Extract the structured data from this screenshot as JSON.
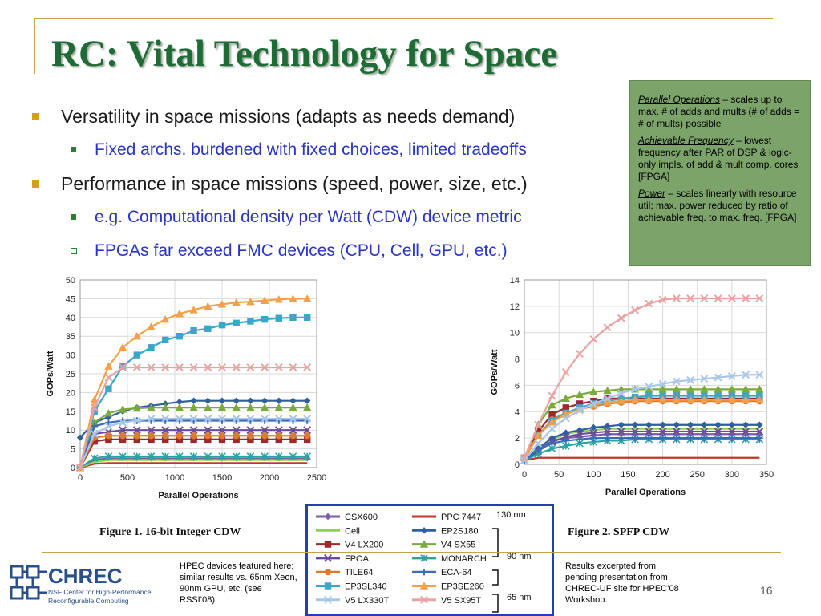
{
  "slide": {
    "title": "RC: Vital Technology for Space",
    "page_number": "16"
  },
  "bullets": [
    {
      "level": 1,
      "marker": "square",
      "text": "Versatility in space missions (adapts as needs demand)"
    },
    {
      "level": 2,
      "marker": "square",
      "text": "Fixed archs. burdened with fixed choices, limited tradeoffs"
    },
    {
      "level": 1,
      "marker": "square",
      "text": "Performance in space missions (speed, power, size, etc.)"
    },
    {
      "level": 2,
      "marker": "square",
      "text": "e.g. Computational density per Watt (CDW) device metric"
    },
    {
      "level": 2,
      "marker": "hollow-square",
      "text": "FPGAs far exceed FMC devices (CPU, Cell, GPU, etc.)"
    }
  ],
  "notes": {
    "parallel_term": "Parallel Operations",
    "parallel_text": " – scales up to max. # of adds and mults (# of adds = # of mults) possible",
    "freq_term": "Achievable Frequency",
    "freq_text": " – lowest frequency after PAR of DSP & logic-only impls. of add & mult comp. cores [FPGA]",
    "power_term": "Power",
    "power_text": " – scales linearly with resource util; max. power reduced by ratio of achievable freq. to max. freq. [FPGA]"
  },
  "footer": {
    "left_note": "HPEC devices featured here; similar results vs. 65nm Xeon, 90nm GPU, etc. (see RSSI’08).",
    "right_note": "Results excerpted from pending presentation from CHREC-UF site for HPEC’08 Workshop.",
    "logo_text": "CHREC",
    "logo_sub1": "NSF Center for High-Performance",
    "logo_sub2": "Reconfigurable Computing"
  },
  "colors": {
    "title": "#1e6b35",
    "accent_gold": "#c8a24a",
    "note_bg": "#7ba36a",
    "legend_border": "#2b3bb0"
  },
  "legend": {
    "series": [
      {
        "name": "CSX600",
        "color": "#7b5ea7",
        "marker": "diamond"
      },
      {
        "name": "PPC 7447",
        "color": "#c0392b",
        "marker": "none"
      },
      {
        "name": "Cell",
        "color": "#8fd14f",
        "marker": "none"
      },
      {
        "name": "EP2S180",
        "color": "#2e5fa3",
        "marker": "diamond"
      },
      {
        "name": "V4 LX200",
        "color": "#a0282c",
        "marker": "square"
      },
      {
        "name": "V4 SX55",
        "color": "#7aab3a",
        "marker": "triangle"
      },
      {
        "name": "FPOA",
        "color": "#6a4c9c",
        "marker": "x"
      },
      {
        "name": "MONARCH",
        "color": "#2aa3a3",
        "marker": "asterisk"
      },
      {
        "name": "TILE64",
        "color": "#e07a2e",
        "marker": "circle"
      },
      {
        "name": "ECA-64",
        "color": "#3a6bb8",
        "marker": "plus"
      },
      {
        "name": "EP3SL340",
        "color": "#3aa7c9",
        "marker": "square"
      },
      {
        "name": "EP3SE260",
        "color": "#f4a04a",
        "marker": "triangle"
      },
      {
        "name": "V5 LX330T",
        "color": "#a9c7e8",
        "marker": "x"
      },
      {
        "name": "V5 SX95T",
        "color": "#e8a3a3",
        "marker": "x"
      }
    ],
    "groups": [
      "130 nm",
      "90 nm",
      "65 nm"
    ]
  },
  "chart_data": [
    {
      "type": "line",
      "caption": "Figure 1. 16-bit Integer CDW",
      "xlabel": "Parallel Operations",
      "ylabel": "GOPs/Watt",
      "xlim": [
        0,
        2500
      ],
      "ylim": [
        0,
        50
      ],
      "xticks": [
        0,
        500,
        1000,
        1500,
        2000,
        2500
      ],
      "yticks": [
        0,
        5,
        10,
        15,
        20,
        25,
        30,
        35,
        40,
        45,
        50
      ],
      "grid": true,
      "x": [
        0,
        150,
        300,
        450,
        600,
        750,
        900,
        1050,
        1200,
        1350,
        1500,
        1650,
        1800,
        1950,
        2100,
        2250,
        2400
      ],
      "series": [
        {
          "name": "CSX600",
          "values": [
            0,
            2.0,
            2.5,
            2.5,
            2.5,
            2.5,
            2.5,
            2.5,
            2.5,
            2.5,
            2.5,
            2.5,
            2.5,
            2.5,
            2.5,
            2.5,
            2.5
          ]
        },
        {
          "name": "PPC 7447",
          "values": [
            0,
            1.0,
            1.2,
            1.2,
            1.2,
            1.2,
            1.2,
            1.2,
            1.2,
            1.2,
            1.2,
            1.2,
            1.2,
            1.2,
            1.2,
            1.2,
            1.2
          ]
        },
        {
          "name": "Cell",
          "values": [
            0,
            1.5,
            2.0,
            2.0,
            2.0,
            2.0,
            2.0,
            2.0,
            2.0,
            2.0,
            2.0,
            2.0,
            2.0,
            2.0,
            2.0,
            2.0,
            2.0
          ]
        },
        {
          "name": "EP2S180",
          "values": [
            8,
            12,
            13.5,
            15,
            16,
            16.5,
            17,
            17.5,
            17.8,
            17.8,
            17.8,
            17.8,
            17.8,
            17.8,
            17.8,
            17.8,
            17.8
          ]
        },
        {
          "name": "V4 LX200",
          "values": [
            0,
            7.0,
            7.5,
            7.5,
            7.5,
            7.5,
            7.5,
            7.5,
            7.5,
            7.5,
            7.5,
            7.5,
            7.5,
            7.5,
            7.5,
            7.5,
            7.5
          ]
        },
        {
          "name": "V4 SX55",
          "values": [
            0,
            12,
            14.5,
            15.5,
            15.8,
            16,
            16,
            16,
            16,
            16,
            16,
            16,
            16,
            16,
            16,
            16,
            16
          ]
        },
        {
          "name": "FPOA",
          "values": [
            0,
            9.0,
            9.5,
            10,
            10,
            10,
            10,
            10,
            10,
            10,
            10,
            10,
            10,
            10,
            10,
            10,
            10
          ]
        },
        {
          "name": "MONARCH",
          "values": [
            0,
            2.5,
            3.0,
            3.0,
            3.0,
            3.0,
            3.0,
            3.0,
            3.0,
            3.0,
            3.0,
            3.0,
            3.0,
            3.0,
            3.0,
            3.0,
            3.0
          ]
        },
        {
          "name": "TILE64",
          "values": [
            0,
            8.0,
            8.5,
            8.5,
            8.5,
            8.5,
            8.5,
            8.5,
            8.5,
            8.5,
            8.5,
            8.5,
            8.5,
            8.5,
            8.5,
            8.5,
            8.5
          ]
        },
        {
          "name": "ECA-64",
          "values": [
            0,
            11,
            12,
            12.5,
            12.5,
            12.5,
            12.5,
            12.5,
            12.5,
            12.5,
            12.5,
            12.5,
            12.5,
            12.5,
            12.5,
            12.5,
            12.5
          ]
        },
        {
          "name": "EP3SL340",
          "values": [
            0,
            15,
            21,
            27,
            30,
            32,
            34,
            35,
            36.5,
            37,
            38,
            38.5,
            39,
            39.5,
            39.8,
            40,
            40
          ]
        },
        {
          "name": "EP3SE260",
          "values": [
            0,
            18,
            27,
            32,
            35,
            37.5,
            39.5,
            41,
            42,
            43,
            43.5,
            44,
            44.2,
            44.5,
            44.8,
            45,
            45
          ]
        },
        {
          "name": "V5 LX330T",
          "values": [
            0,
            9,
            11,
            12,
            12.5,
            13,
            13,
            13,
            13,
            13,
            13,
            13,
            13,
            13,
            13,
            13,
            13
          ]
        },
        {
          "name": "V5 SX95T",
          "values": [
            0,
            16,
            24,
            26.7,
            26.7,
            26.7,
            26.7,
            26.7,
            26.7,
            26.7,
            26.7,
            26.7,
            26.7,
            26.7,
            26.7,
            26.7,
            26.7
          ]
        }
      ]
    },
    {
      "type": "line",
      "caption": "Figure 2. SPFP CDW",
      "xlabel": "Parallel Operations",
      "ylabel": "GOPs/Watt",
      "xlim": [
        0,
        350
      ],
      "ylim": [
        0,
        14
      ],
      "xticks": [
        0,
        50,
        100,
        150,
        200,
        250,
        300,
        350
      ],
      "yticks": [
        0,
        2,
        4,
        6,
        8,
        10,
        12,
        14
      ],
      "grid": true,
      "x": [
        0,
        20,
        40,
        60,
        80,
        100,
        120,
        140,
        160,
        180,
        200,
        220,
        240,
        260,
        280,
        300,
        320,
        340
      ],
      "series": [
        {
          "name": "CSX600",
          "values": [
            0.3,
            1.2,
            1.8,
            2.0,
            2.1,
            2.2,
            2.3,
            2.3,
            2.3,
            2.3,
            2.3,
            2.3,
            2.3,
            2.3,
            2.3,
            2.3,
            2.3,
            2.3
          ]
        },
        {
          "name": "PPC 7447",
          "values": [
            0.3,
            0.5,
            0.5,
            0.5,
            0.5,
            0.5,
            0.5,
            0.5,
            0.5,
            0.5,
            0.5,
            0.5,
            0.5,
            0.5,
            0.5,
            0.5,
            0.5,
            0.5
          ]
        },
        {
          "name": "Cell",
          "values": [
            0.3,
            1.3,
            1.9,
            2.3,
            2.5,
            2.6,
            2.7,
            2.7,
            2.7,
            2.7,
            2.7,
            2.7,
            2.7,
            2.7,
            2.7,
            2.7,
            2.7,
            2.7
          ]
        },
        {
          "name": "EP2S180",
          "values": [
            0.3,
            1.2,
            2.0,
            2.4,
            2.6,
            2.8,
            2.9,
            3.0,
            3.0,
            3.0,
            3.0,
            3.0,
            3.0,
            3.0,
            3.0,
            3.0,
            3.0,
            3.0
          ]
        },
        {
          "name": "V4 LX200",
          "values": [
            0.5,
            2.5,
            3.8,
            4.3,
            4.6,
            4.8,
            5.0,
            5.0,
            5.0,
            5.0,
            5.0,
            5.0,
            5.0,
            5.0,
            5.0,
            5.0,
            5.0,
            5.0
          ]
        },
        {
          "name": "V4 SX55",
          "values": [
            0.5,
            3.0,
            4.5,
            5.0,
            5.3,
            5.5,
            5.6,
            5.7,
            5.7,
            5.7,
            5.7,
            5.7,
            5.7,
            5.7,
            5.7,
            5.7,
            5.7,
            5.7
          ]
        },
        {
          "name": "FPOA",
          "values": [
            0.3,
            1.0,
            1.7,
            2.1,
            2.3,
            2.4,
            2.5,
            2.5,
            2.5,
            2.5,
            2.5,
            2.5,
            2.5,
            2.5,
            2.5,
            2.5,
            2.5,
            2.5
          ]
        },
        {
          "name": "MONARCH",
          "values": [
            0.3,
            0.8,
            1.2,
            1.4,
            1.6,
            1.7,
            1.8,
            1.8,
            1.9,
            1.9,
            1.9,
            1.9,
            1.9,
            1.9,
            1.9,
            1.9,
            1.9,
            1.9
          ]
        },
        {
          "name": "TILE64",
          "values": [
            0.4,
            2.2,
            3.4,
            3.9,
            4.2,
            4.4,
            4.6,
            4.7,
            4.8,
            4.8,
            4.8,
            4.8,
            4.8,
            4.8,
            4.8,
            4.8,
            4.8,
            4.8
          ]
        },
        {
          "name": "ECA-64",
          "values": [
            0.3,
            1.1,
            1.6,
            1.8,
            1.9,
            2.0,
            2.0,
            2.0,
            2.0,
            2.0,
            2.0,
            2.0,
            2.0,
            2.0,
            2.0,
            2.0,
            2.0,
            2.0
          ]
        },
        {
          "name": "EP3SL340",
          "values": [
            0.5,
            2.2,
            3.3,
            3.9,
            4.3,
            4.6,
            4.8,
            5.0,
            5.1,
            5.2,
            5.2,
            5.2,
            5.2,
            5.2,
            5.2,
            5.2,
            5.2,
            5.2
          ]
        },
        {
          "name": "EP3SE260",
          "values": [
            0.5,
            2.2,
            3.2,
            3.8,
            4.2,
            4.5,
            4.7,
            4.8,
            4.9,
            4.9,
            4.9,
            4.9,
            4.9,
            4.9,
            4.9,
            4.9,
            4.9,
            4.9
          ]
        },
        {
          "name": "V5 LX330T",
          "values": [
            0.3,
            1.6,
            2.7,
            3.5,
            4.1,
            4.6,
            5.0,
            5.4,
            5.7,
            5.9,
            6.1,
            6.3,
            6.4,
            6.5,
            6.6,
            6.7,
            6.8,
            6.8
          ]
        },
        {
          "name": "V5 SX95T",
          "values": [
            0.5,
            3.0,
            5.2,
            7.0,
            8.4,
            9.5,
            10.4,
            11.1,
            11.7,
            12.2,
            12.5,
            12.6,
            12.6,
            12.6,
            12.6,
            12.6,
            12.6,
            12.6
          ]
        }
      ]
    }
  ]
}
